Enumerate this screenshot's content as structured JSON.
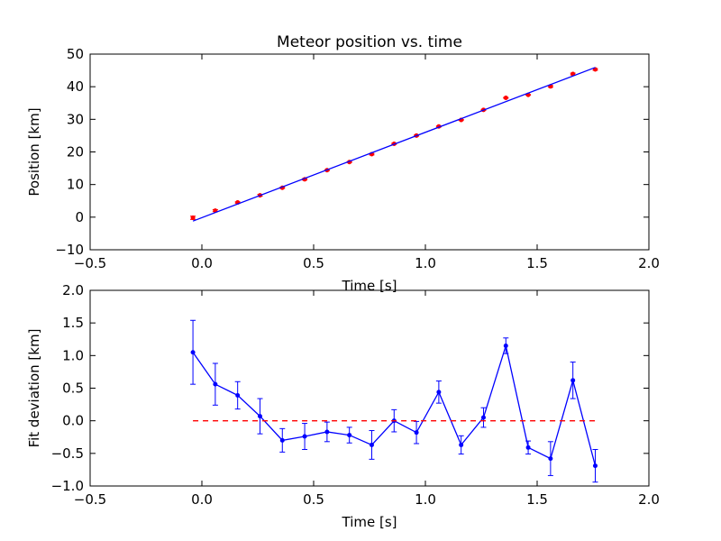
{
  "chart_data": [
    {
      "type": "scatter",
      "title": "Meteor position vs. time",
      "xlabel": "Time [s]",
      "ylabel": "Position [km]",
      "xlim": [
        -0.5,
        2.0
      ],
      "ylim": [
        -10,
        50
      ],
      "x_ticks": [
        -0.5,
        0.0,
        0.5,
        1.0,
        1.5,
        2.0
      ],
      "y_ticks": [
        -10,
        0,
        10,
        20,
        30,
        40,
        50
      ],
      "grid": false,
      "series": [
        {
          "kind": "points-with-errorbars",
          "color": "#ff0000",
          "x": [
            -0.04,
            0.06,
            0.16,
            0.26,
            0.36,
            0.46,
            0.56,
            0.66,
            0.76,
            0.86,
            0.96,
            1.06,
            1.16,
            1.26,
            1.36,
            1.46,
            1.56,
            1.66,
            1.76
          ],
          "y": [
            -0.2,
            2.0,
            4.5,
            6.7,
            9.0,
            11.6,
            14.4,
            16.9,
            19.3,
            22.5,
            25.0,
            27.8,
            29.8,
            32.9,
            36.6,
            37.5,
            40.1,
            43.9,
            45.3
          ],
          "yerr": [
            0.5,
            0.3,
            0.2,
            0.27,
            0.18,
            0.21,
            0.16,
            0.13,
            0.22,
            0.18,
            0.17,
            0.16,
            0.15,
            0.15,
            0.12,
            0.1,
            0.26,
            0.27,
            0.25
          ]
        },
        {
          "kind": "fit-line",
          "color": "#0000ff",
          "x": [
            -0.04,
            1.76
          ],
          "y": [
            -1.2,
            45.9
          ]
        }
      ]
    },
    {
      "type": "line",
      "title": "",
      "xlabel": "Time [s]",
      "ylabel": "Fit deviation [km]",
      "xlim": [
        -0.5,
        2.0
      ],
      "ylim": [
        -1.0,
        2.0
      ],
      "x_ticks": [
        -0.5,
        0.0,
        0.5,
        1.0,
        1.5,
        2.0
      ],
      "y_ticks": [
        -1.0,
        -0.5,
        0.0,
        0.5,
        1.0,
        1.5,
        2.0
      ],
      "grid": false,
      "series": [
        {
          "kind": "line-with-errorbars",
          "color": "#0000ff",
          "x": [
            -0.04,
            0.06,
            0.16,
            0.26,
            0.36,
            0.46,
            0.56,
            0.66,
            0.76,
            0.86,
            0.96,
            1.06,
            1.16,
            1.26,
            1.36,
            1.46,
            1.56,
            1.66,
            1.76
          ],
          "y": [
            1.05,
            0.56,
            0.39,
            0.07,
            -0.3,
            -0.24,
            -0.17,
            -0.22,
            -0.37,
            0.0,
            -0.18,
            0.44,
            -0.37,
            0.05,
            1.15,
            -0.41,
            -0.58,
            0.62,
            -0.69
          ],
          "yerr": [
            0.49,
            0.32,
            0.21,
            0.27,
            0.18,
            0.2,
            0.15,
            0.12,
            0.22,
            0.17,
            0.17,
            0.17,
            0.14,
            0.15,
            0.12,
            0.1,
            0.26,
            0.28,
            0.25
          ]
        },
        {
          "kind": "reference-line",
          "color": "#ff0000",
          "dashed": true,
          "x": [
            -0.04,
            1.76
          ],
          "y": [
            0.0,
            0.0
          ]
        }
      ]
    }
  ]
}
